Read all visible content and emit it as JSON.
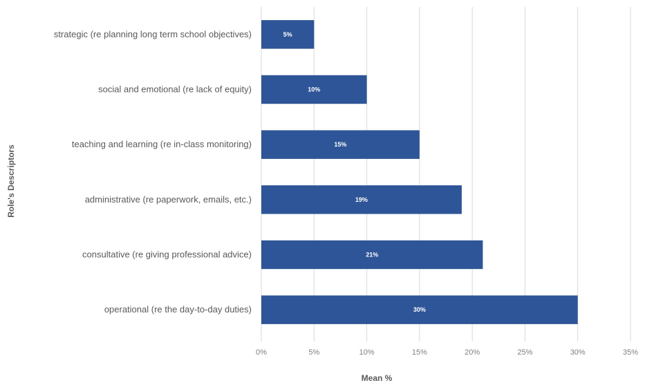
{
  "chart_data": {
    "type": "bar",
    "orientation": "horizontal",
    "categories": [
      "strategic (re planning long term school objectives)",
      "social and emotional (re lack of equity)",
      "teaching and learning (re in-class monitoring)",
      "administrative (re paperwork, emails, etc.)",
      "consultative (re giving professional advice)",
      "operational (re the day-to-day duties)"
    ],
    "values": [
      5,
      10,
      15,
      19,
      21,
      30
    ],
    "data_labels": [
      "5%",
      "10%",
      "15%",
      "19%",
      "21%",
      "30%"
    ],
    "xlabel": "Mean %",
    "ylabel": "Role's Descriptors",
    "xlim": [
      0,
      35
    ],
    "x_ticks": [
      0,
      5,
      10,
      15,
      20,
      25,
      30,
      35
    ],
    "x_tick_labels": [
      "0%",
      "5%",
      "10%",
      "15%",
      "20%",
      "25%",
      "30%",
      "35%"
    ],
    "grid": "vertical",
    "legend": "none",
    "bar_color": "#2e5597"
  }
}
